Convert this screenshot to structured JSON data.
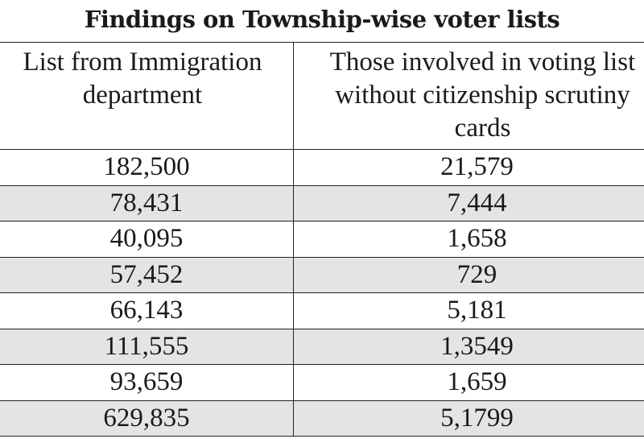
{
  "title": "Findings on Township-wise voter lists",
  "table": {
    "headers": [
      "List from Immigration department",
      "Those involved in voting list without citizenship scrutiny cards"
    ],
    "rows": [
      [
        "182,500",
        "21,579"
      ],
      [
        "78,431",
        "7,444"
      ],
      [
        "40,095",
        "1,658"
      ],
      [
        "57,452",
        "729"
      ],
      [
        "66,143",
        "5,181"
      ],
      [
        "111,555",
        "1,3549"
      ],
      [
        "93,659",
        "1,659"
      ],
      [
        "629,835",
        "5,1799"
      ]
    ],
    "shaded_row_color": "#e4e4e4",
    "border_color": "#222222"
  }
}
